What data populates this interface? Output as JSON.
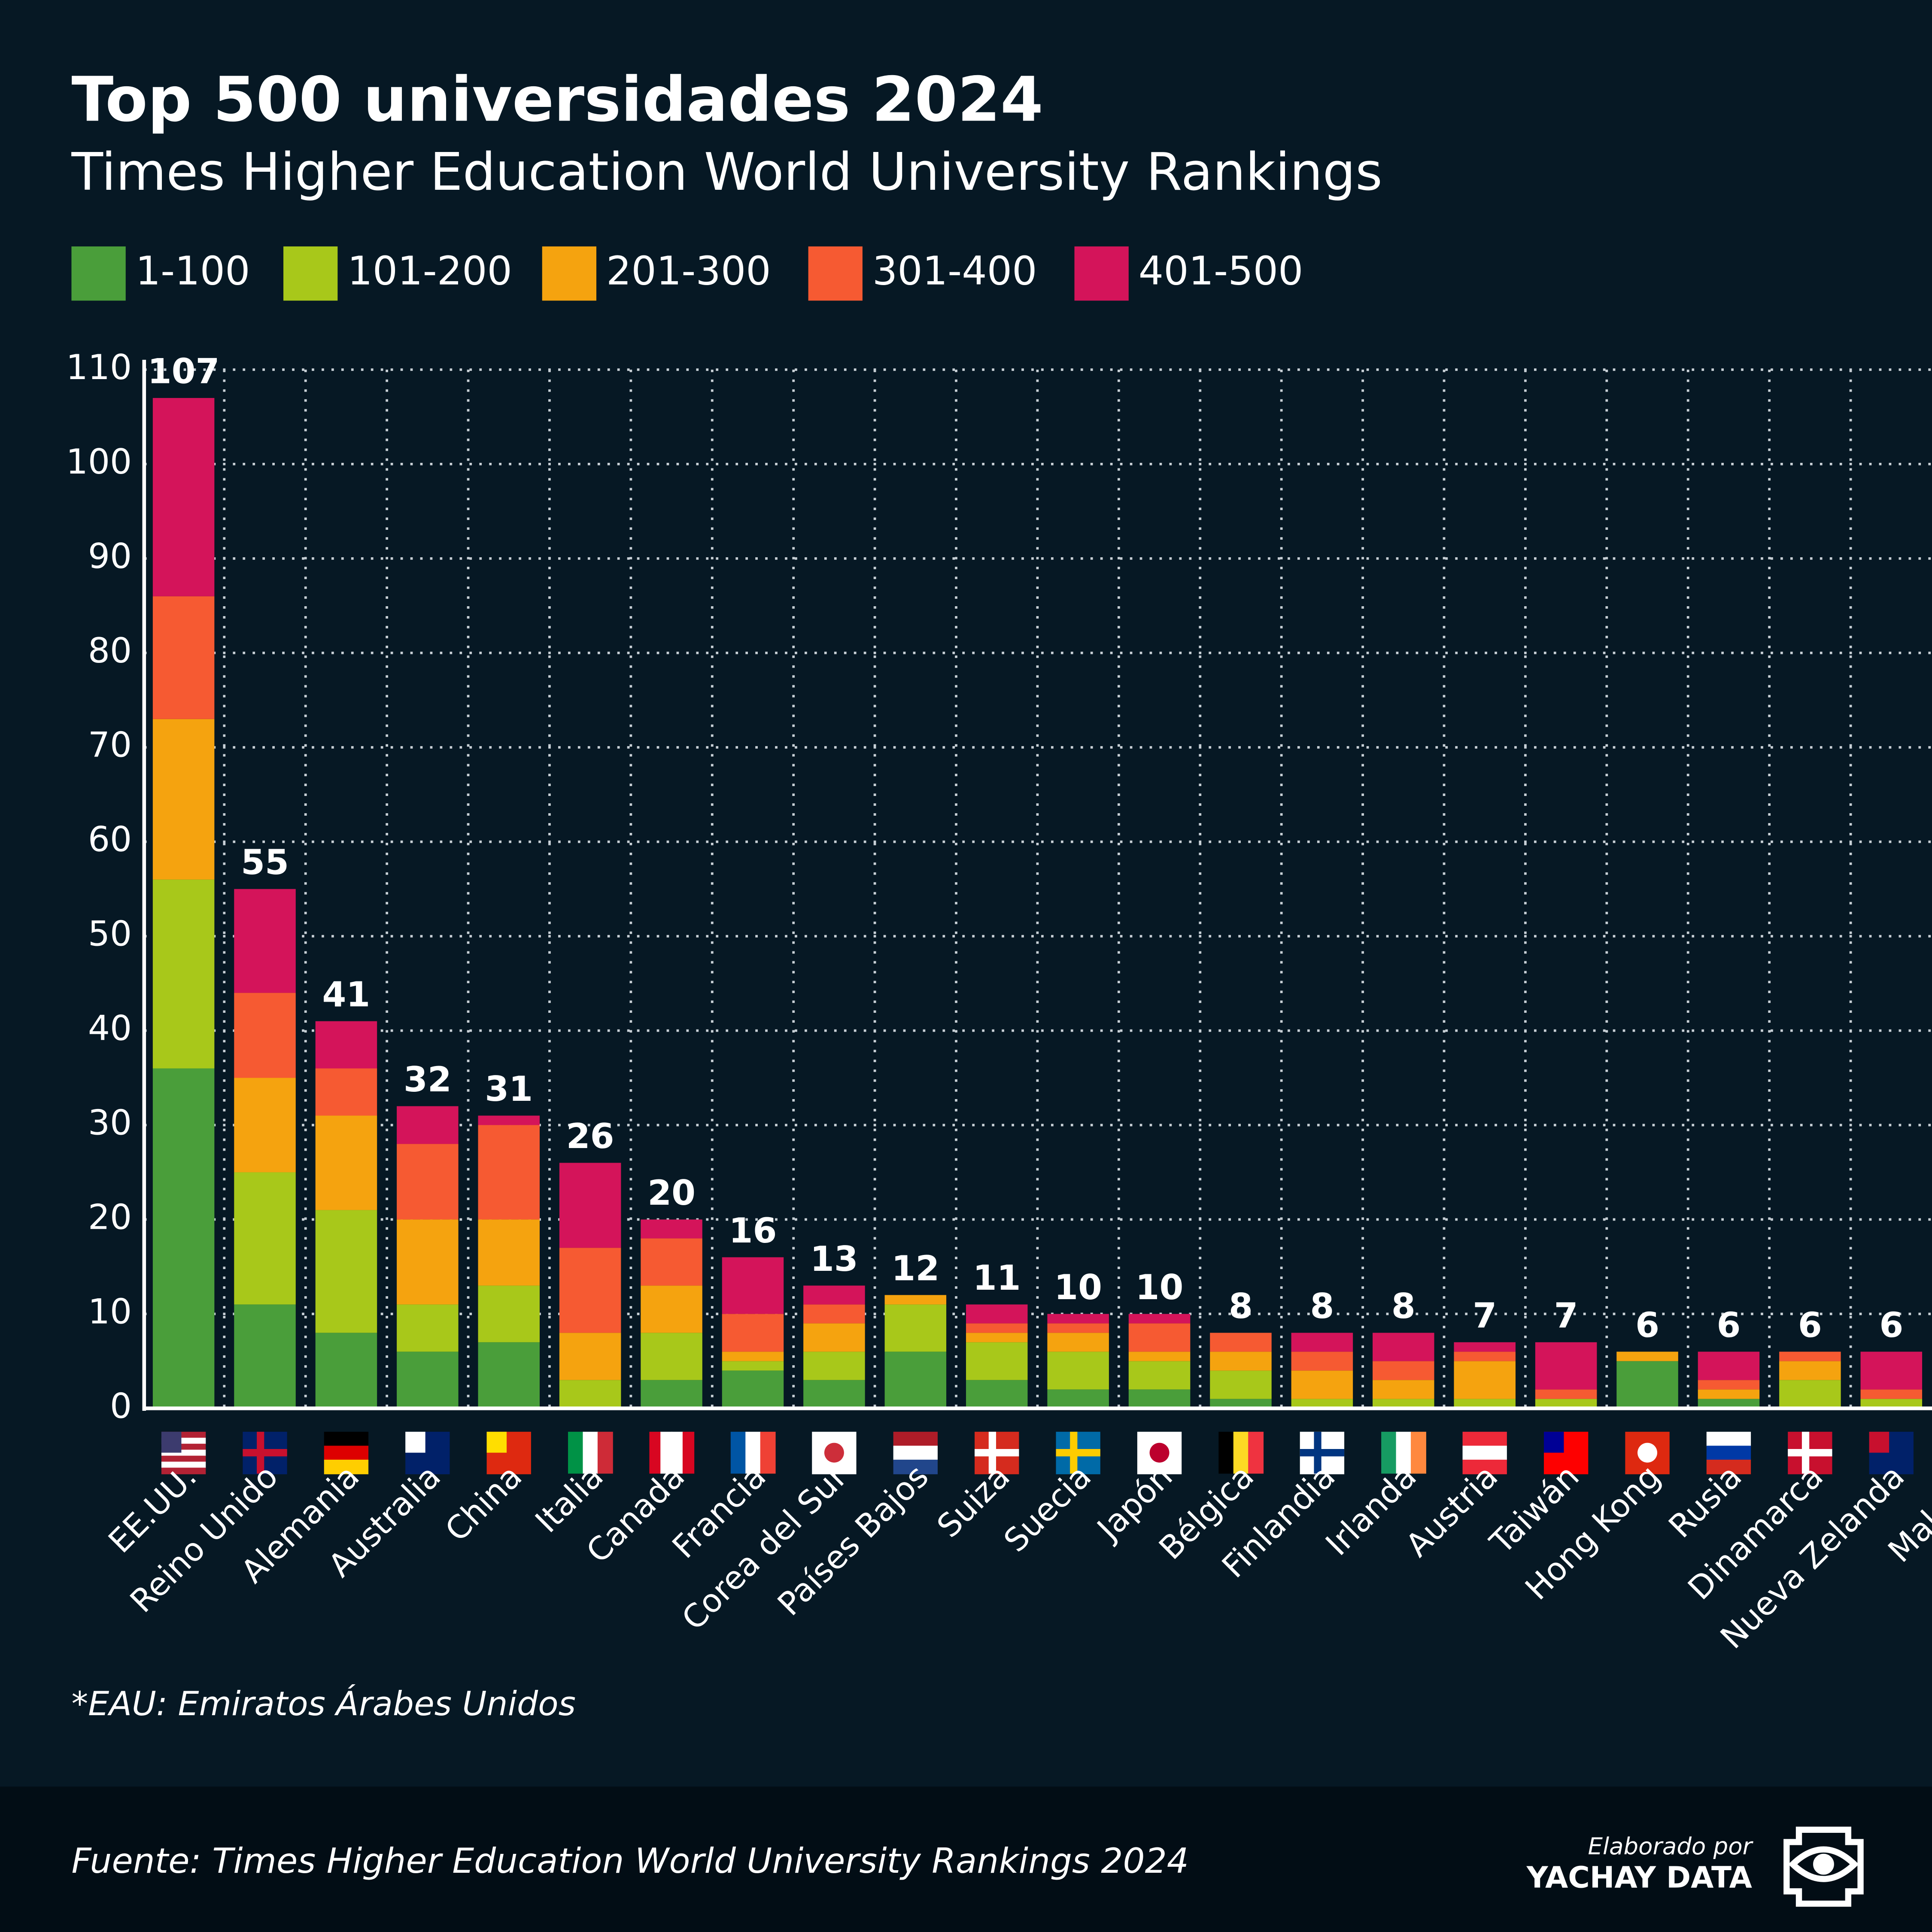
{
  "chart_data": {
    "type": "stacked-bar",
    "title": "Top 500 universidades 2024",
    "subtitle": "Times Higher Education World University Rankings",
    "categories": [
      "EE.UU.",
      "Reino Unido",
      "Alemania",
      "Australia",
      "China",
      "Italia",
      "Canadá",
      "Francia",
      "Corea del Sur",
      "Países Bajos",
      "Suiza",
      "Suecia",
      "Japón",
      "Bélgica",
      "Finlandia",
      "Irlanda",
      "Austria",
      "Taiwán",
      "Hong Kong",
      "Rusia",
      "Dinamarca",
      "Nueva Zelanda",
      "Malasia"
    ],
    "series": [
      {
        "name": "1-100",
        "color": "#4a9e3a",
        "values": [
          36,
          11,
          8,
          6,
          7,
          0,
          3,
          4,
          3,
          6,
          3,
          2,
          2,
          1,
          0,
          0,
          0,
          0,
          5,
          1,
          0,
          0,
          null
        ]
      },
      {
        "name": "101-200",
        "color": "#a8c81a",
        "values": [
          20,
          14,
          13,
          5,
          6,
          3,
          5,
          1,
          3,
          5,
          4,
          4,
          3,
          3,
          1,
          1,
          1,
          1,
          0,
          0,
          3,
          1,
          null
        ]
      },
      {
        "name": "201-300",
        "color": "#f5a30f",
        "values": [
          17,
          10,
          10,
          9,
          7,
          5,
          5,
          1,
          3,
          1,
          1,
          2,
          1,
          2,
          3,
          2,
          4,
          0,
          1,
          1,
          2,
          0,
          null
        ]
      },
      {
        "name": "301-400",
        "color": "#f65a32",
        "values": [
          13,
          9,
          5,
          8,
          10,
          9,
          5,
          4,
          2,
          0,
          1,
          1,
          3,
          2,
          2,
          2,
          1,
          1,
          0,
          1,
          1,
          1,
          null
        ]
      },
      {
        "name": "401-500",
        "color": "#d4145a",
        "values": [
          21,
          11,
          5,
          4,
          1,
          9,
          2,
          6,
          2,
          0,
          2,
          1,
          1,
          0,
          2,
          3,
          1,
          5,
          0,
          3,
          0,
          4,
          null
        ]
      }
    ],
    "totals": [
      107,
      55,
      41,
      32,
      31,
      26,
      20,
      16,
      13,
      12,
      11,
      10,
      10,
      8,
      8,
      8,
      7,
      7,
      6,
      6,
      6,
      6,
      null
    ],
    "ylim": [
      0,
      110
    ],
    "yticks": [
      0,
      10,
      20,
      30,
      40,
      50,
      60,
      70,
      80,
      90,
      100,
      110
    ],
    "grid": true,
    "note": "*EAU: Emiratos Árabes Unidos",
    "source": "Fuente: Times Higher Education World University Rankings 2024",
    "credit_prefix": "Elaborado por",
    "credit": "YACHAY DATA"
  }
}
